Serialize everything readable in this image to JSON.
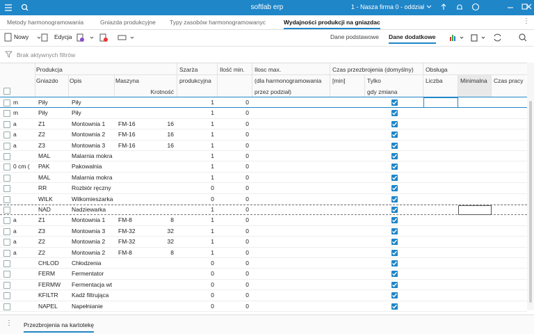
{
  "titlebar": {
    "app": "softlab erp",
    "company": "1 - Nasza firma 0 - oddział"
  },
  "tabs": [
    "Metody harmonogramowania",
    "Gniazda produkcyjne",
    "Typy zasobów harmonogramowanyc",
    "Wydajności produkcji na gniazdac"
  ],
  "active_tab": 3,
  "toolbar": {
    "new": "Nowy",
    "edit": "Edycja",
    "views": [
      "Dane podstawowe",
      "Dane dodatkowe"
    ],
    "active_view": 1
  },
  "filter": "Brak aktywnych filtrów",
  "table": {
    "header": [
      "Produkcja",
      "Szarża",
      "Ilość min.",
      "Ilosc max.",
      "Czas przezbrojenia (domyślny)",
      "Obsługa",
      "Gniazdo",
      "Opis",
      "Maszyna",
      "produkcyjna",
      "(dla harmonogramowania",
      "[min]",
      "Tylko",
      "Liczba",
      "Minimalna",
      "Czas pracy",
      "Krotność",
      "przez podział)",
      "gdy zmiana"
    ],
    "rows": [
      [
        "m",
        "Piły",
        "Piły",
        null,
        null,
        1,
        0,
        true
      ],
      [
        "m",
        "Piły",
        "Piły",
        null,
        null,
        1,
        0,
        true
      ],
      [
        "a",
        "Z1",
        "Montownia 1",
        "FM-16",
        16,
        1,
        0,
        true
      ],
      [
        "a",
        "Z2",
        "Montownia 2",
        "FM-16",
        16,
        1,
        0,
        true
      ],
      [
        "a",
        "Z3",
        "Montownia 3",
        "FM-16",
        16,
        1,
        0,
        true
      ],
      [
        null,
        "MAL",
        "Malarnia mokra",
        null,
        null,
        1,
        0,
        true
      ],
      [
        "0 cm (",
        "PAK",
        "Pakowalnia",
        null,
        null,
        1,
        0,
        true
      ],
      [
        null,
        "MAL",
        "Malarnia mokra",
        null,
        null,
        1,
        0,
        true
      ],
      [
        null,
        "RR",
        "Rozbiór ręczny",
        null,
        null,
        0,
        0,
        true
      ],
      [
        null,
        "WILK",
        "Wilkomieszarka",
        null,
        null,
        0,
        0,
        true
      ],
      [
        null,
        "NAD",
        "Nadziewarka",
        null,
        null,
        1,
        0,
        true
      ],
      [
        "a",
        "Z1",
        "Montownia 1",
        "FM-8",
        8,
        1,
        0,
        true
      ],
      [
        "a",
        "Z3",
        "Montownia 3",
        "FM-32",
        32,
        1,
        0,
        true
      ],
      [
        "a",
        "Z2",
        "Montownia 2",
        "FM-32",
        32,
        1,
        0,
        true
      ],
      [
        "a",
        "Z2",
        "Montownia 2",
        "FM-8",
        8,
        1,
        0,
        true
      ],
      [
        null,
        "CHLOD",
        "Chłodzenia",
        null,
        null,
        0,
        0,
        true
      ],
      [
        null,
        "FERM",
        "Fermentator",
        null,
        null,
        0,
        0,
        true
      ],
      [
        null,
        "FERMW",
        "Fermentacja wt",
        null,
        null,
        0,
        0,
        true
      ],
      [
        null,
        "KFILTR",
        "Kadź filtrująca",
        null,
        null,
        0,
        0,
        true
      ],
      [
        null,
        "NAPEL",
        "Napełnianie",
        null,
        null,
        0,
        0,
        true
      ]
    ]
  },
  "bottom_tab": "Przezbrojenia na kartotekę"
}
